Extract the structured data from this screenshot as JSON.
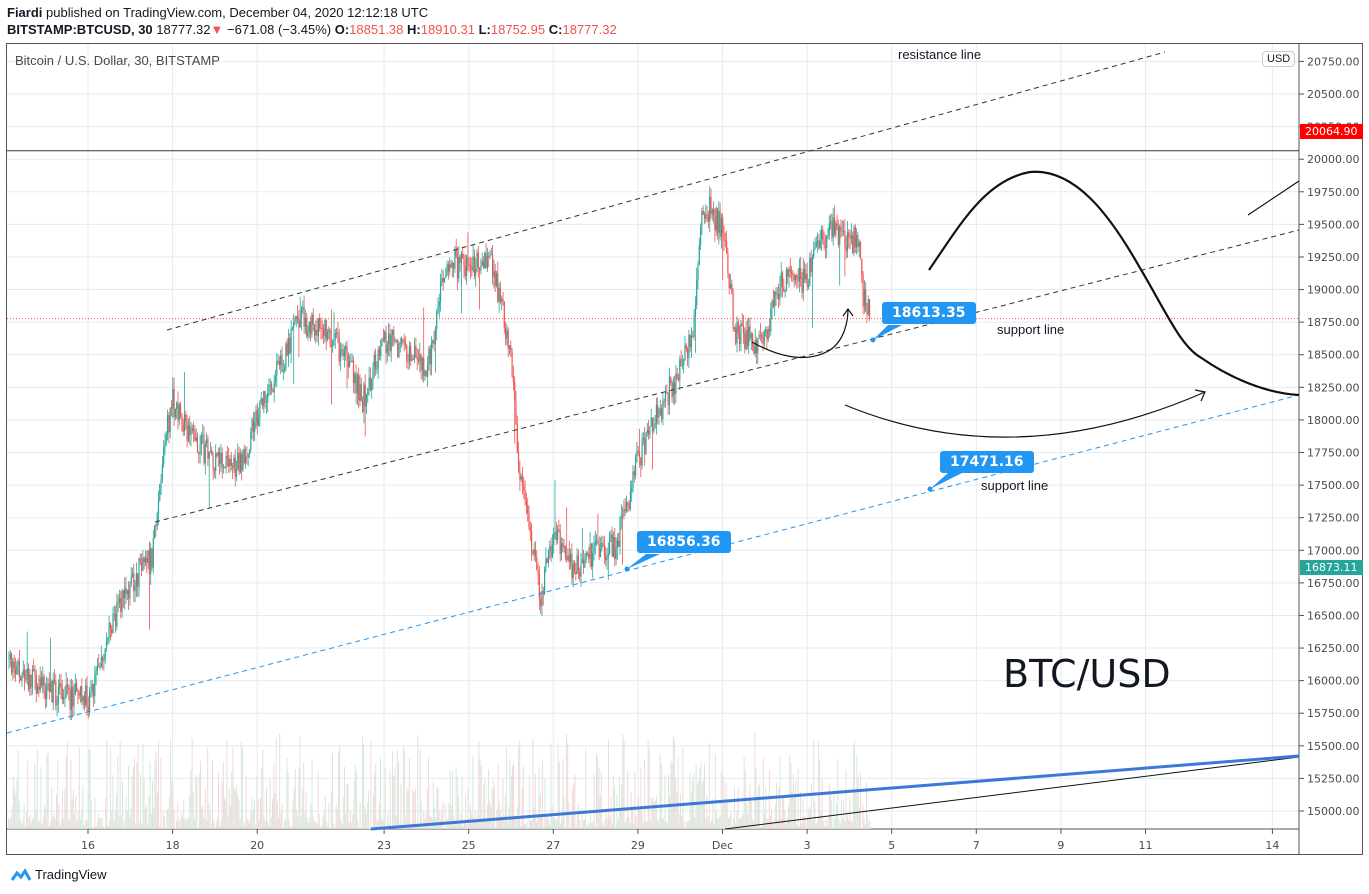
{
  "header": {
    "author": "Fiardi",
    "published": "published on TradingView.com, December 04, 2020 12:12:18 UTC",
    "symbol": "BITSTAMP:BTCUSD, 30",
    "last": "18777.32",
    "change": "−671.08 (−3.45%)",
    "open_label": "O:",
    "open": "18851.38",
    "high_label": "H:",
    "high": "18910.31",
    "low_label": "L:",
    "low": "18752.95",
    "close_label": "C:",
    "close": "18777.32"
  },
  "legend": "Bitcoin / U.S. Dollar, 30, BITSTAMP",
  "currency_button": "USD",
  "annotations": {
    "resistance": "resistance line",
    "support1": "support line",
    "support2": "support line",
    "pair": "BTC/USD",
    "callouts": [
      "18613.35",
      "17471.16",
      "16856.36"
    ]
  },
  "price_tags": {
    "high_line": "20064.90",
    "high_color": "#ff0000",
    "low_tag": "16873.11",
    "low_color": "#26a69a"
  },
  "footer": {
    "brand": "TradingView"
  },
  "colors": {
    "up": "#26a69a",
    "down": "#ef5350",
    "callout": "#2196f3",
    "trend_blue": "#3c78d8"
  },
  "chart_data": {
    "type": "candlestick",
    "title": "Bitcoin / U.S. Dollar, 30, BITSTAMP",
    "y_ticks": [
      "15000.00",
      "15250.00",
      "15500.00",
      "15750.00",
      "16000.00",
      "16250.00",
      "16500.00",
      "16750.00",
      "17000.00",
      "17250.00",
      "17500.00",
      "17750.00",
      "18000.00",
      "18250.00",
      "18500.00",
      "18750.00",
      "19000.00",
      "19250.00",
      "19500.00",
      "19750.00",
      "20000.00",
      "20250.00",
      "20500.00",
      "20750.00"
    ],
    "x_ticks": [
      "16",
      "18",
      "20",
      "23",
      "25",
      "27",
      "29",
      "Dec",
      "3",
      "5",
      "7",
      "9",
      "11",
      "14"
    ],
    "ylim": [
      14850,
      20850
    ],
    "grid": true,
    "price_path": [
      [
        "Nov 14",
        16200
      ],
      [
        "Nov 15",
        15930
      ],
      [
        "Nov 16",
        15850
      ],
      [
        "Nov 16 12:00",
        16390
      ],
      [
        "Nov 17",
        16770
      ],
      [
        "Nov 17 12:00",
        16920
      ],
      [
        "Nov 17 19:00",
        17770
      ],
      [
        "Nov 18",
        18150
      ],
      [
        "Nov 18 12:00",
        17850
      ],
      [
        "Nov 19",
        17690
      ],
      [
        "Nov 19 12:00",
        17610
      ],
      [
        "Nov 20",
        18000
      ],
      [
        "Nov 20 12:00",
        18380
      ],
      [
        "Nov 21",
        18770
      ],
      [
        "Nov 21 12:00",
        18690
      ],
      [
        "Nov 22",
        18540
      ],
      [
        "Nov 22 12:00",
        18150
      ],
      [
        "Nov 23",
        18610
      ],
      [
        "Nov 23 12:00",
        18540
      ],
      [
        "Nov 24",
        18380
      ],
      [
        "Nov 24 12:00",
        19230
      ],
      [
        "Nov 25",
        19150
      ],
      [
        "Nov 25 12:00",
        19300
      ],
      [
        "Nov 25 19:00",
        18840
      ],
      [
        "Nov 26",
        18540
      ],
      [
        "Nov 26 05:00",
        17540
      ],
      [
        "Nov 26 12:00",
        17000
      ],
      [
        "Nov 26 17:00",
        16620
      ],
      [
        "Nov 27",
        17150
      ],
      [
        "Nov 27 12:00",
        16850
      ],
      [
        "Nov 28",
        17000
      ],
      [
        "Nov 28 12:00",
        17040
      ],
      [
        "Nov 29",
        17690
      ],
      [
        "Nov 29 12:00",
        18080
      ],
      [
        "Nov 30",
        18380
      ],
      [
        "Nov 30 07:00",
        18690
      ],
      [
        "Nov 30 12:00",
        19530
      ],
      [
        "Nov 30 17:00",
        19610
      ],
      [
        "Dec 1",
        19460
      ],
      [
        "Dec 1 07:00",
        18690
      ],
      [
        "Dec 1 14:00",
        18610
      ],
      [
        "Dec 2",
        18610
      ],
      [
        "Dec 2 07:00",
        19000
      ],
      [
        "Dec 2 14:00",
        19070
      ],
      [
        "Dec 3",
        19070
      ],
      [
        "Dec 3 07:00",
        19380
      ],
      [
        "Dec 3 14:00",
        19460
      ],
      [
        "Dec 4",
        19380
      ],
      [
        "Dec 4 05:00",
        19380
      ],
      [
        "Dec 4 08:00",
        18920
      ],
      [
        "Dec 4 12:00",
        18777.32
      ]
    ],
    "last_price": 18777.32
  }
}
